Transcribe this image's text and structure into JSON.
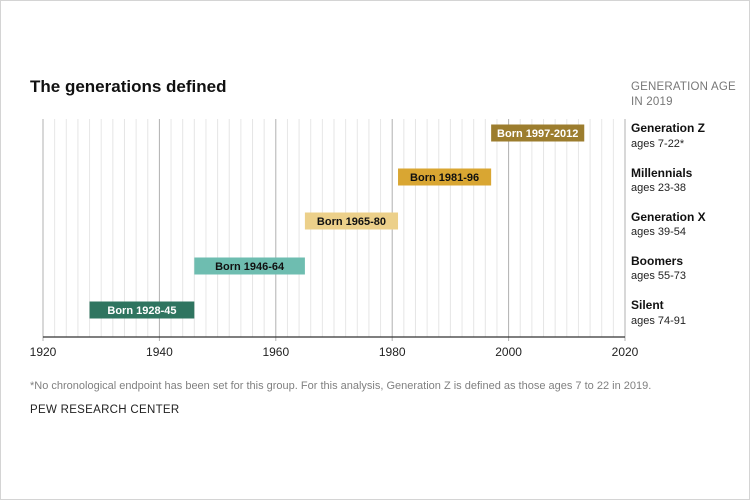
{
  "title": "The generations defined",
  "age_header": [
    "GENERATION AGE",
    "IN 2019"
  ],
  "footnote": "*No chronological endpoint has been set for this group. For this analysis, Generation Z is defined as those ages 7 to 22 in 2019.",
  "source": "PEW RESEARCH CENTER",
  "colors": {
    "generation_z": "#9c7d2e",
    "millennials": "#d9a632",
    "generation_x": "#ecd08a",
    "boomers": "#6ebdb0",
    "silent": "#2f7560",
    "major_grid": "#b0b0b0",
    "minor_grid": "#e6e6e6",
    "axis": "#333333"
  },
  "generations": [
    {
      "name": "Generation Z",
      "age": "ages 7-22*"
    },
    {
      "name": "Millennials",
      "age": "ages 23-38"
    },
    {
      "name": "Generation X",
      "age": "ages 39-54"
    },
    {
      "name": "Boomers",
      "age": "ages 55-73"
    },
    {
      "name": "Silent",
      "age": "ages 74-91"
    }
  ],
  "chart_data": {
    "type": "bar",
    "orientation": "horizontal-range",
    "title": "The generations defined",
    "xlabel": "",
    "ylabel": "",
    "xlim": [
      1920,
      2020
    ],
    "x_ticks": [
      1920,
      1940,
      1960,
      1980,
      2000,
      2020
    ],
    "grid": true,
    "series": [
      {
        "category": "Generation Z",
        "label": "Born 1997-2012",
        "start": 1997,
        "end": 2013,
        "color": "#9c7d2e"
      },
      {
        "category": "Millennials",
        "label": "Born 1981-96",
        "start": 1981,
        "end": 1997,
        "color": "#d9a632"
      },
      {
        "category": "Generation X",
        "label": "Born 1965-80",
        "start": 1965,
        "end": 1981,
        "color": "#ecd08a"
      },
      {
        "category": "Boomers",
        "label": "Born 1946-64",
        "start": 1946,
        "end": 1965,
        "color": "#6ebdb0"
      },
      {
        "category": "Silent",
        "label": "Born 1928-45",
        "start": 1928,
        "end": 1946,
        "color": "#2f7560"
      }
    ]
  }
}
